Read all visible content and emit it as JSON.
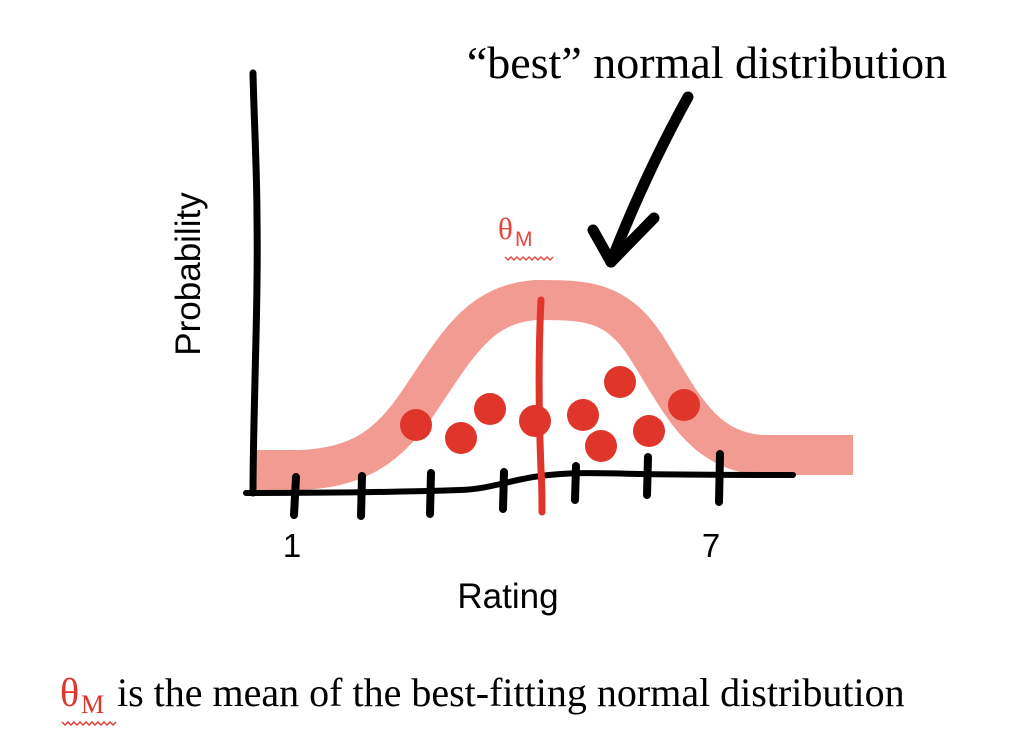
{
  "annotation": {
    "text": "“best” normal distribution"
  },
  "theta_label": {
    "symbol": "θ",
    "subscript": "M"
  },
  "axes": {
    "y_label": "Probability",
    "x_label": "Rating",
    "tick_labels": [
      "1",
      "7"
    ]
  },
  "caption": {
    "symbol": "θ",
    "subscript": "M",
    "text": " is the mean of the best-fitting normal distribution"
  },
  "colors": {
    "ink": "#000000",
    "curve": "#f29b93",
    "points": "#e0352b",
    "mean_line": "#e0352b",
    "theta": "#e8463c"
  }
}
